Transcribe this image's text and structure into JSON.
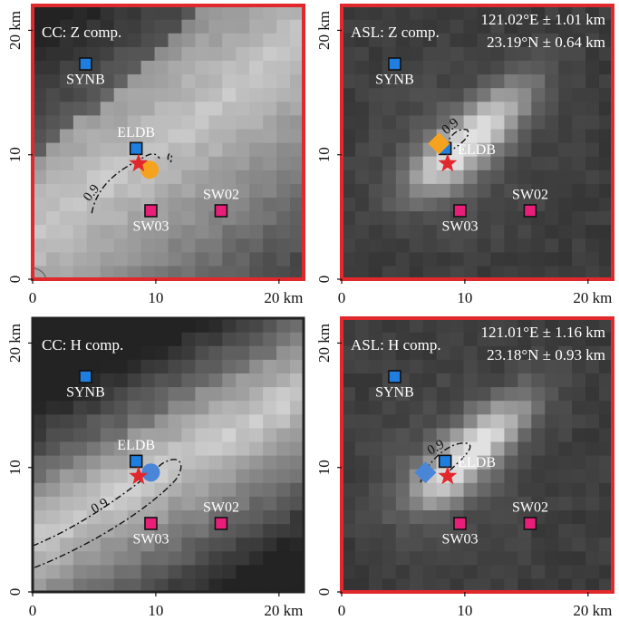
{
  "colors": {
    "highlight_border": "#e0282d",
    "plain_border": "#222222",
    "station_blue": "#1e7fe0",
    "station_pink": "#ea1e78",
    "star": "#e0282d",
    "cc_dot": "#f5a31e",
    "cc_dot_h": "#4a86d8",
    "asl_diamond": "#f5a31e",
    "asl_diamond_h": "#4a86d8"
  },
  "panels": [
    {
      "id": "cc-z",
      "method": "CC",
      "label": "CC: Z comp.",
      "highlighted": true,
      "coords": [],
      "contour_label": "0.9",
      "estimate_marker": "circle",
      "estimate": [
        9.5,
        8.8
      ],
      "x_ticks": [
        "0",
        "10",
        "20 km"
      ],
      "y_ticks": [
        "0",
        "10",
        "20 km"
      ]
    },
    {
      "id": "asl-z",
      "method": "ASL",
      "label": "ASL: Z comp.",
      "highlighted": true,
      "coords": [
        "121.02°E ± 1.01 km",
        "23.19°N ± 0.64 km"
      ],
      "contour_label": "0.9",
      "estimate_marker": "diamond",
      "estimate": [
        7.9,
        10.9
      ],
      "x_ticks": [
        "0",
        "10",
        "20 km"
      ],
      "y_ticks": [
        "0",
        "10",
        "20 km"
      ]
    },
    {
      "id": "cc-h",
      "method": "CC",
      "label": "CC: H comp.",
      "highlighted": false,
      "coords": [],
      "contour_label": "0.9",
      "estimate_marker": "circle",
      "estimate": [
        9.6,
        9.6
      ],
      "x_ticks": [
        "0",
        "10",
        "20 km"
      ],
      "y_ticks": [
        "0",
        "10",
        "20 km"
      ]
    },
    {
      "id": "asl-h",
      "method": "ASL",
      "label": "ASL: H comp.",
      "highlighted": true,
      "coords": [
        "121.01°E ± 1.16 km",
        "23.18°N ± 0.93 km"
      ],
      "contour_label": "0.9",
      "estimate_marker": "diamond",
      "estimate": [
        6.8,
        9.6
      ],
      "x_ticks": [
        "0",
        "10",
        "20 km"
      ],
      "y_ticks": [
        "0",
        "10",
        "20 km"
      ]
    }
  ],
  "stations": [
    {
      "name": "SYNB",
      "x": 4.3,
      "y": 17.3,
      "color": "blue",
      "label_pos": "below"
    },
    {
      "name": "ELDB",
      "x": 8.4,
      "y": 10.5,
      "color": "blue",
      "label_pos": "above"
    },
    {
      "name": "SW02",
      "x": 15.3,
      "y": 5.5,
      "color": "pink",
      "label_pos": "above"
    },
    {
      "name": "SW03",
      "x": 9.6,
      "y": 5.5,
      "color": "pink",
      "label_pos": "below"
    }
  ],
  "event_star": {
    "x": 8.6,
    "y": 9.3
  }
}
